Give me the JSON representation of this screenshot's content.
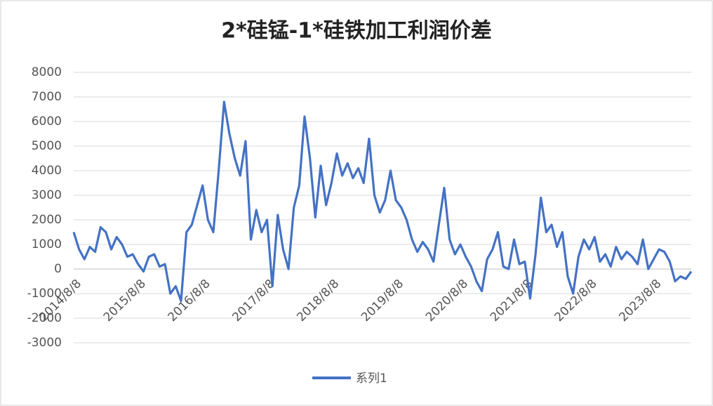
{
  "chart_data": {
    "type": "line",
    "title": "2*硅锰-1*硅铁加工利润价差",
    "categories": [
      "2014/8/8",
      null,
      null,
      null,
      null,
      null,
      null,
      null,
      null,
      null,
      null,
      null,
      "2015/8/8",
      null,
      null,
      null,
      null,
      null,
      null,
      null,
      null,
      null,
      null,
      null,
      "2016/8/8",
      null,
      null,
      null,
      null,
      null,
      null,
      null,
      null,
      null,
      null,
      null,
      "2017/8/8",
      null,
      null,
      null,
      null,
      null,
      null,
      null,
      null,
      null,
      null,
      null,
      "2018/8/8",
      null,
      null,
      null,
      null,
      null,
      null,
      null,
      null,
      null,
      null,
      null,
      "2019/8/8",
      null,
      null,
      null,
      null,
      null,
      null,
      null,
      null,
      null,
      null,
      null,
      "2020/8/8",
      null,
      null,
      null,
      null,
      null,
      null,
      null,
      null,
      null,
      null,
      null,
      "2021/8/8",
      null,
      null,
      null,
      null,
      null,
      null,
      null,
      null,
      null,
      null,
      null,
      "2022/8/8",
      null,
      null,
      null,
      null,
      null,
      null,
      null,
      null,
      null,
      null,
      null,
      "2023/8/8",
      null,
      null,
      null,
      null,
      null,
      null,
      null
    ],
    "series": [
      {
        "name": "系列1",
        "color": "#4472c4",
        "values": [
          1500,
          800,
          400,
          900,
          700,
          1700,
          1500,
          800,
          1300,
          1000,
          500,
          600,
          200,
          -100,
          500,
          600,
          100,
          200,
          -1000,
          -700,
          -1300,
          1500,
          1800,
          2600,
          3400,
          2000,
          1500,
          4000,
          6800,
          5500,
          4500,
          3800,
          5200,
          1200,
          2400,
          1500,
          2000,
          -700,
          2200,
          800,
          0,
          2500,
          3400,
          6200,
          4500,
          2100,
          4200,
          2600,
          3500,
          4700,
          3800,
          4300,
          3700,
          4100,
          3500,
          5300,
          3000,
          2300,
          2800,
          4000,
          2800,
          2500,
          2000,
          1200,
          700,
          1100,
          800,
          300,
          1800,
          3300,
          1200,
          600,
          1000,
          500,
          100,
          -500,
          -900,
          400,
          800,
          1500,
          100,
          0,
          1200,
          200,
          300,
          -1200,
          600,
          2900,
          1500,
          1800,
          900,
          1500,
          -300,
          -1000,
          500,
          1200,
          800,
          1300,
          300,
          600,
          100,
          900,
          400,
          700,
          500,
          200,
          1200,
          0,
          400,
          800,
          700,
          300,
          -500,
          -300,
          -400,
          -100
        ]
      }
    ],
    "ylim": [
      -3000,
      8000
    ],
    "yticks": [
      -3000,
      -2000,
      -1000,
      0,
      1000,
      2000,
      3000,
      4000,
      5000,
      6000,
      7000,
      8000
    ],
    "grid": true
  }
}
